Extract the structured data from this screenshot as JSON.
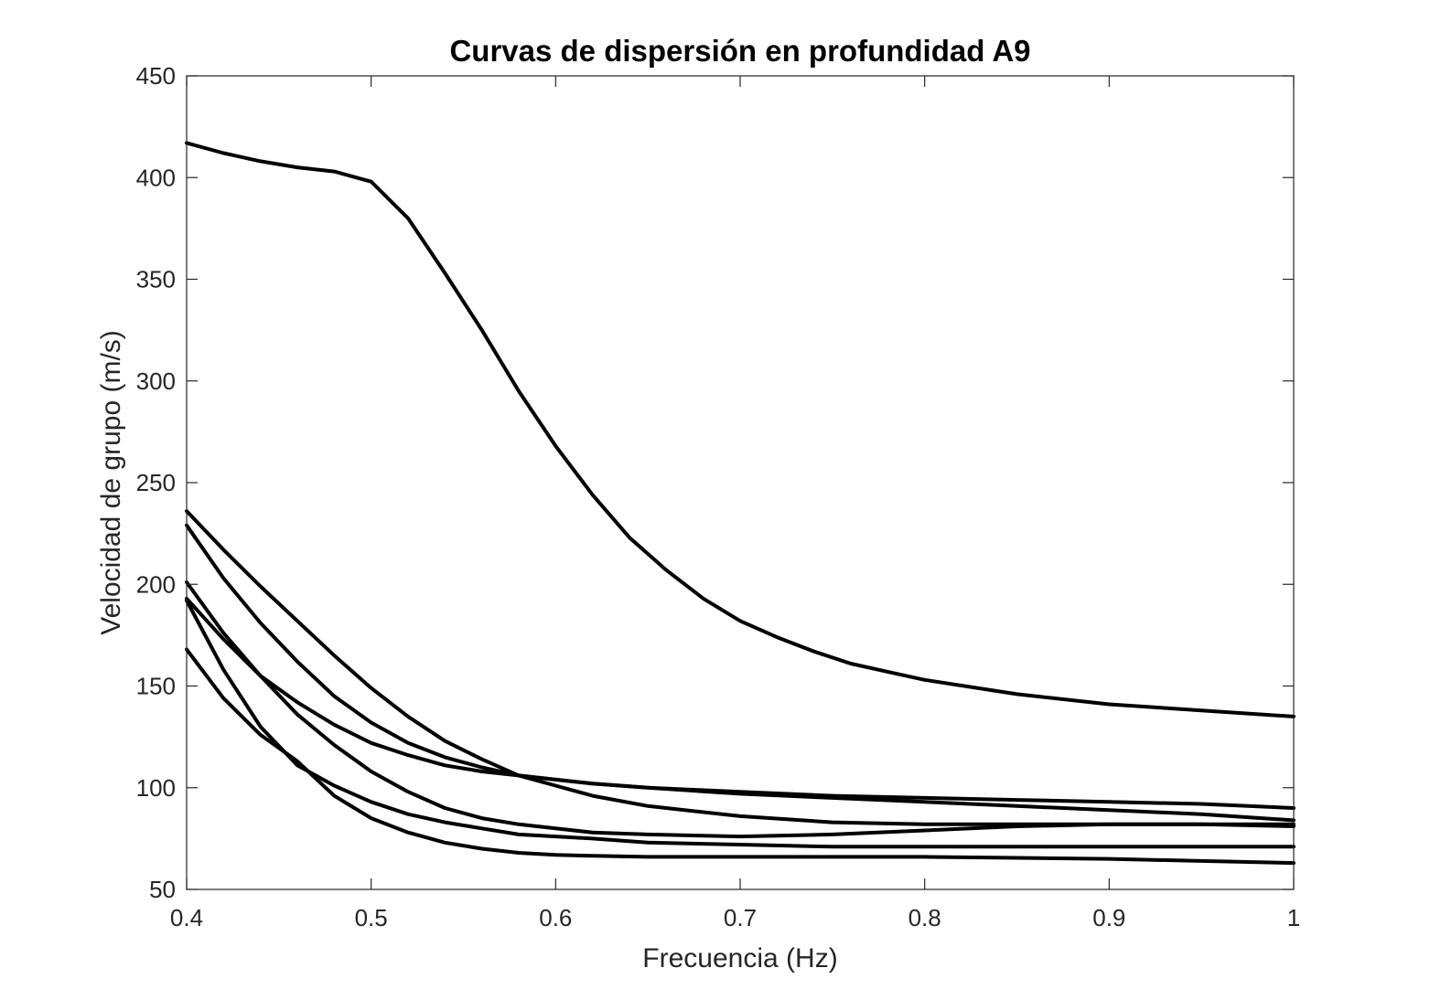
{
  "chart_data": {
    "type": "line",
    "title": "Curvas de dispersión en profundidad A9",
    "xlabel": "Frecuencia (Hz)",
    "ylabel": "Velocidad de grupo (m/s)",
    "xlim": [
      0.4,
      1.0
    ],
    "ylim": [
      50,
      450
    ],
    "xticks": [
      0.4,
      0.5,
      0.6,
      0.7,
      0.8,
      0.9,
      1.0
    ],
    "xtick_labels": [
      "0.4",
      "0.5",
      "0.6",
      "0.7",
      "0.8",
      "0.9",
      "1"
    ],
    "yticks": [
      50,
      100,
      150,
      200,
      250,
      300,
      350,
      400,
      450
    ],
    "ytick_labels": [
      "50",
      "100",
      "150",
      "200",
      "250",
      "300",
      "350",
      "400",
      "450"
    ],
    "grid": false,
    "legend": "none",
    "line_color": "#000000",
    "series": [
      {
        "x": [
          0.4,
          0.42,
          0.44,
          0.46,
          0.48,
          0.5,
          0.52,
          0.54,
          0.56,
          0.58,
          0.6,
          0.62,
          0.64,
          0.66,
          0.68,
          0.7,
          0.72,
          0.74,
          0.76,
          0.78,
          0.8,
          0.85,
          0.9,
          0.95,
          1.0
        ],
        "y": [
          417,
          412,
          408,
          405,
          403,
          398,
          380,
          353,
          325,
          295,
          268,
          244,
          223,
          207,
          193,
          182,
          174,
          167,
          161,
          157,
          153,
          146,
          141,
          138,
          135
        ]
      },
      {
        "x": [
          0.4,
          0.42,
          0.44,
          0.46,
          0.48,
          0.5,
          0.52,
          0.54,
          0.56,
          0.58,
          0.6,
          0.62,
          0.65,
          0.7,
          0.75,
          0.8,
          0.85,
          0.9,
          0.95,
          1.0
        ],
        "y": [
          236,
          217,
          199,
          182,
          165,
          149,
          135,
          123,
          114,
          106,
          101,
          96,
          91,
          86,
          83,
          82,
          82,
          82,
          82,
          82
        ]
      },
      {
        "x": [
          0.4,
          0.42,
          0.44,
          0.46,
          0.48,
          0.5,
          0.52,
          0.54,
          0.56,
          0.58,
          0.6,
          0.62,
          0.65,
          0.7,
          0.75,
          0.8,
          0.85,
          0.9,
          0.95,
          1.0
        ],
        "y": [
          229,
          203,
          181,
          162,
          145,
          132,
          122,
          115,
          110,
          106,
          104,
          102,
          100,
          97,
          95,
          93,
          91,
          89,
          87,
          84
        ]
      },
      {
        "x": [
          0.4,
          0.42,
          0.44,
          0.46,
          0.48,
          0.5,
          0.52,
          0.54,
          0.56,
          0.58,
          0.6,
          0.62,
          0.65,
          0.7,
          0.75,
          0.8,
          0.85,
          0.9,
          0.95,
          1.0
        ],
        "y": [
          193,
          173,
          155,
          142,
          131,
          122,
          116,
          111,
          108,
          106,
          104,
          102,
          100,
          98,
          96,
          95,
          94,
          93,
          92,
          90
        ]
      },
      {
        "x": [
          0.4,
          0.42,
          0.44,
          0.46,
          0.48,
          0.5,
          0.52,
          0.54,
          0.56,
          0.58,
          0.6,
          0.62,
          0.65,
          0.7,
          0.75,
          0.8,
          0.85,
          0.9,
          0.95,
          1.0
        ],
        "y": [
          201,
          176,
          155,
          136,
          121,
          108,
          98,
          90,
          85,
          82,
          80,
          78,
          77,
          76,
          77,
          79,
          81,
          82,
          82,
          81
        ]
      },
      {
        "x": [
          0.4,
          0.42,
          0.44,
          0.46,
          0.48,
          0.5,
          0.52,
          0.54,
          0.56,
          0.58,
          0.6,
          0.62,
          0.65,
          0.7,
          0.75,
          0.8,
          0.85,
          0.9,
          0.95,
          1.0
        ],
        "y": [
          192,
          158,
          130,
          111,
          101,
          93,
          87,
          83,
          80,
          77,
          76,
          75,
          73,
          72,
          71,
          71,
          71,
          71,
          71,
          71
        ]
      },
      {
        "x": [
          0.4,
          0.42,
          0.44,
          0.46,
          0.48,
          0.5,
          0.52,
          0.54,
          0.56,
          0.58,
          0.6,
          0.62,
          0.65,
          0.7,
          0.75,
          0.8,
          0.85,
          0.9,
          0.95,
          1.0
        ],
        "y": [
          168,
          144,
          126,
          113,
          96,
          85,
          78,
          73,
          70,
          68,
          67,
          66.5,
          66,
          66,
          66,
          66,
          65.5,
          65,
          64,
          63
        ]
      }
    ]
  }
}
